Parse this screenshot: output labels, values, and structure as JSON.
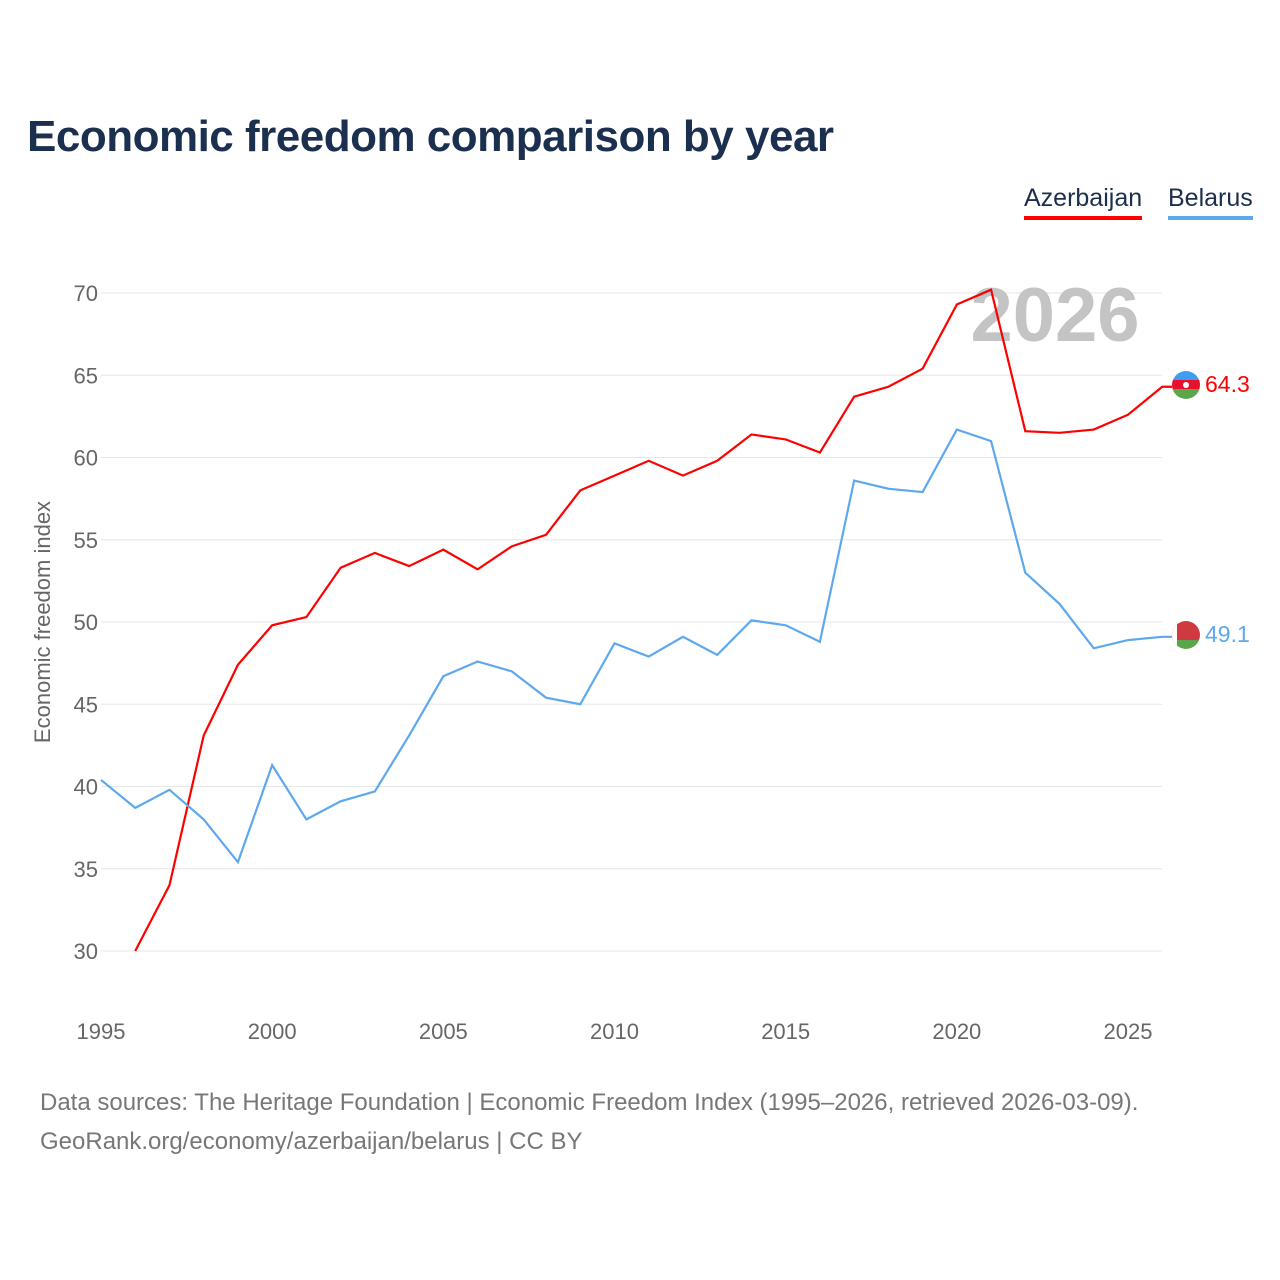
{
  "title": "Economic freedom comparison by year",
  "legend": [
    {
      "label": "Azerbaijan",
      "color": "#ff0000"
    },
    {
      "label": "Belarus",
      "color": "#5ea8ef"
    }
  ],
  "year_watermark": "2026",
  "footer": {
    "line1": "Data sources: The Heritage Foundation | Economic Freedom Index (1995–2026, retrieved 2026-03-09).",
    "line2": "GeoRank.org/economy/azerbaijan/belarus | CC BY"
  },
  "chart_data": {
    "type": "line",
    "title": "Economic freedom comparison by year",
    "xlabel": "",
    "ylabel": "Economic freedom index",
    "xlim": [
      1995,
      2026
    ],
    "ylim": [
      27.5,
      72
    ],
    "x_ticks": [
      "1995",
      "2000",
      "2005",
      "2010",
      "2015",
      "2020",
      "2025"
    ],
    "y_ticks": [
      "30",
      "35",
      "40",
      "45",
      "50",
      "55",
      "60",
      "65",
      "70"
    ],
    "grid": true,
    "legend_position": "top-right",
    "series": [
      {
        "name": "Azerbaijan",
        "color": "#ff0000",
        "end_label": "64.3",
        "x": [
          1996,
          1997,
          1998,
          1999,
          2000,
          2001,
          2002,
          2003,
          2004,
          2005,
          2006,
          2007,
          2008,
          2009,
          2010,
          2011,
          2012,
          2013,
          2014,
          2015,
          2016,
          2017,
          2018,
          2019,
          2020,
          2021,
          2022,
          2023,
          2024,
          2025,
          2026
        ],
        "values": [
          30.0,
          34.0,
          43.1,
          47.4,
          49.8,
          50.3,
          53.3,
          54.2,
          53.4,
          54.4,
          53.2,
          54.6,
          55.3,
          58.0,
          58.9,
          59.8,
          58.9,
          59.8,
          61.4,
          61.1,
          60.3,
          63.7,
          64.3,
          65.4,
          69.3,
          70.2,
          61.6,
          61.5,
          61.7,
          62.6,
          64.3
        ]
      },
      {
        "name": "Belarus",
        "color": "#5ea8ef",
        "end_label": "49.1",
        "x": [
          1995,
          1996,
          1997,
          1998,
          1999,
          2000,
          2001,
          2002,
          2003,
          2004,
          2005,
          2006,
          2007,
          2008,
          2009,
          2010,
          2011,
          2012,
          2013,
          2014,
          2015,
          2016,
          2017,
          2018,
          2019,
          2020,
          2021,
          2022,
          2023,
          2024,
          2025,
          2026
        ],
        "values": [
          40.4,
          38.7,
          39.8,
          38.0,
          35.4,
          41.3,
          38.0,
          39.1,
          39.7,
          43.1,
          46.7,
          47.6,
          47.0,
          45.4,
          45.0,
          48.7,
          47.9,
          49.1,
          48.0,
          50.1,
          49.8,
          48.8,
          58.6,
          58.1,
          57.9,
          61.7,
          61.0,
          53.0,
          51.1,
          48.4,
          48.9,
          49.1
        ]
      }
    ]
  }
}
